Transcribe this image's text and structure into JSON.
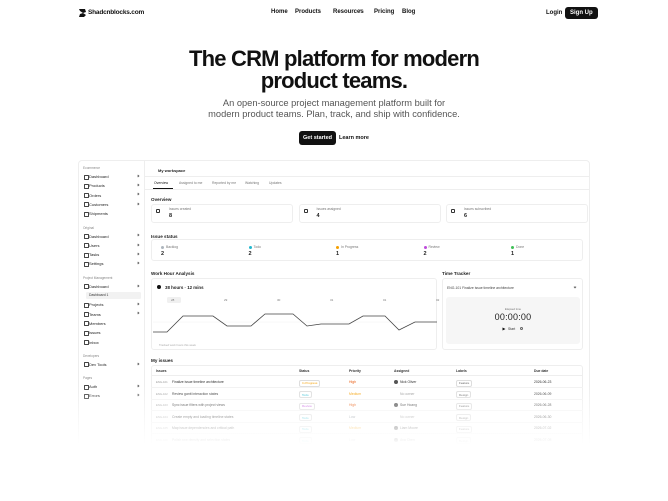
{
  "nav": {
    "logo": "Shadcnblocks.com",
    "links": [
      "Home",
      "Products",
      "Resources",
      "Pricing",
      "Blog"
    ],
    "login": "Login",
    "signup": "Sign Up"
  },
  "hero": {
    "title": [
      "The CRM platform for modern",
      "product teams."
    ],
    "subtitle": [
      "An open-source project management platform built for",
      "modern product teams. Plan, track, and ship with confidence."
    ],
    "primary": "Get started",
    "secondary": "Learn more"
  },
  "dashboard": {
    "sidebar": [
      {
        "label": "Ecommerce",
        "items": [
          "Dashboard",
          "Products",
          "Orders",
          "Customers",
          "Shipments"
        ]
      },
      {
        "label": "Original",
        "items": [
          "Dashboard",
          "Users",
          "Tasks",
          "Settings"
        ]
      },
      {
        "label": "Project Management",
        "items": [
          "Dashboard",
          "Dashboard 1",
          "Projects",
          "Teams",
          "Members",
          "Issues",
          "Inbox"
        ]
      },
      {
        "label": "Developers",
        "items": [
          "Dev Tools"
        ]
      },
      {
        "label": "Pages",
        "items": [
          "Auth",
          "Errors"
        ]
      }
    ],
    "workspace": "My workspace",
    "tabs": [
      "Overview",
      "Assigned to me",
      "Reported by me",
      "Watching",
      "Updates"
    ],
    "overview": "Overview",
    "cards": [
      {
        "label": "Issues created",
        "value": "8"
      },
      {
        "label": "Issues assigned",
        "value": "4"
      },
      {
        "label": "Issues subscribed",
        "value": "6"
      }
    ],
    "status_title": "Issue status",
    "statuses": [
      {
        "name": "Backlog",
        "value": "2",
        "color": "#adb5bd"
      },
      {
        "name": "Todo",
        "value": "2",
        "color": "#22b8cf"
      },
      {
        "name": "In Progress",
        "value": "1",
        "color": "#f59f00"
      },
      {
        "name": "Review",
        "value": "2",
        "color": "#be4bdb"
      },
      {
        "name": "Done",
        "value": "1",
        "color": "#40c057"
      }
    ],
    "work": {
      "title": "Work Hour Analysis",
      "total": "38 hours · 12 mins",
      "days": [
        "28",
        "29",
        "30",
        "31",
        "01",
        "02"
      ],
      "note": "Tracked work hours this week"
    },
    "timer": {
      "title": "Time Tracker",
      "task": "ENG-101  Finalize issue timeline architecture",
      "caption": "Elapsed time",
      "time": "00:00:00",
      "start": "Start"
    },
    "issues": {
      "title": "My issues",
      "columns": [
        "Issues",
        "Status",
        "Priority",
        "Assigned",
        "Labels",
        "Due date"
      ],
      "rows": [
        [
          "ENG-101",
          "Finalize issue timeline architecture",
          "In Progress",
          "High",
          "Nick Oliver",
          "Feature",
          "2026-06-23"
        ],
        [
          "ENG-102",
          "Review gantt interaction states",
          "Todo",
          "Medium",
          "No owner",
          "Design",
          "2026-06-09"
        ],
        [
          "ENG-103",
          "Sync issue filters with project views",
          "Review",
          "High",
          "Sue Hoang",
          "Feature",
          "2026-06-28"
        ],
        [
          "ENG-104",
          "Create empty and loading timeline states",
          "Todo",
          "Low",
          "No owner",
          "Design",
          "2026-06-30"
        ],
        [
          "ENG-105",
          "Map issue dependencies and critical path",
          "Todo",
          "Medium",
          "Liam Moore",
          "Feature",
          "2026-07-02"
        ],
        [
          "ENG-106",
          "Polish row density and selection states",
          "Todo",
          "Low",
          "Ava Chen",
          "Design",
          "2026-07-05"
        ]
      ]
    }
  }
}
